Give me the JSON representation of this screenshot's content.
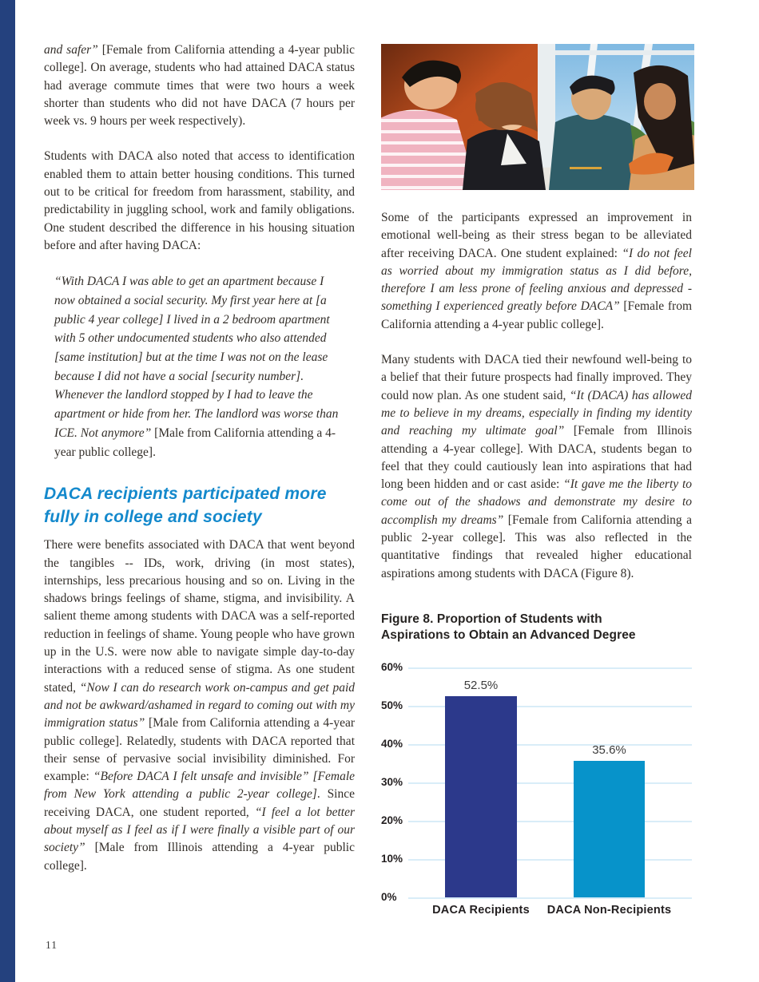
{
  "page": {
    "number": "11",
    "accent_bar_color": "#24417e",
    "heading_color": "#1489cc"
  },
  "left_column": {
    "para1_runs": [
      {
        "t": "and safer”",
        "i": true
      },
      {
        "t": " [Female from California attending a 4-year public college]. On average, students who had attained DACA status had average commute times that were two hours a week shorter than students who did not have DACA (7 hours per week vs. 9 hours per week respectively).",
        "i": false
      }
    ],
    "para2": "Students with DACA also noted that access to identification enabled them to attain better housing conditions. This turned out to be critical for freedom from harassment, stability, and predictability in juggling school, work and family obligations. One student described the difference in his housing situation before and after having DACA:",
    "quote_runs": [
      {
        "t": "“With DACA I was able to get an apartment because I now obtained a social security. My first year here at [a public 4 year college] I lived in a 2 bedroom apartment with 5 other undocumented students who also attended [same institution] but at the time I was not on the lease because I did not have a social [security number]. Whenever the landlord stopped by I had to leave the apartment or hide from her. The landlord was worse than ICE. Not anymore”",
        "i": true
      },
      {
        "t": " [Male from California attending a 4-year public college].",
        "i": false
      }
    ],
    "heading": "DACA recipients participated more fully in college and society",
    "para3_runs": [
      {
        "t": "There were benefits associated with DACA that went beyond the tangibles -- IDs, work, driving (in most states), internships, less precarious housing and so on. Living in the shadows brings feelings of shame, stigma, and invisibility. A salient theme among students with DACA was a self-reported reduction in feelings of shame. Young people who have grown up in the U.S. were now able to navigate simple day-to-day interactions with a reduced sense of stigma. As one student stated, ",
        "i": false
      },
      {
        "t": "“Now I can do research work on-campus and get paid and not be awkward/ashamed in regard to coming out with my immigration status”",
        "i": true
      },
      {
        "t": " [Male from California attending a 4-year public college]. Relatedly, students with DACA reported that their sense of pervasive social invisibility diminished. For example: ",
        "i": false
      },
      {
        "t": "“Before DACA I felt unsafe and invisible” [Female from New York attending a public 2-year college]",
        "i": true
      },
      {
        "t": ". Since receiving DACA, one student reported, ",
        "i": false
      },
      {
        "t": "“I feel a lot better about myself as I feel as if I were finally a visible part of our society”",
        "i": true
      },
      {
        "t": " [Male from Illinois attending a 4-year public college].",
        "i": false
      }
    ]
  },
  "right_column": {
    "paraA_runs": [
      {
        "t": "Some of the participants expressed an improvement in emotional well-being as their stress began to be alleviated after receiving DACA. One student explained: ",
        "i": false
      },
      {
        "t": "“I do not feel as worried about my immigration status as I did before, therefore I am less prone of feeling anxious and depressed - something I experienced greatly before DACA”",
        "i": true
      },
      {
        "t": " [Female from California attending a 4-year public college].",
        "i": false
      }
    ],
    "paraB_runs": [
      {
        "t": "Many students with DACA tied their newfound well-being to a belief that their future prospects had finally improved. They could now plan. As one student said, ",
        "i": false
      },
      {
        "t": "“It (DACA) has allowed me to believe in my dreams, especially in finding my identity and reaching my ultimate goal”",
        "i": true
      },
      {
        "t": " [Female from Illinois attending a 4-year college]. With DACA, students began to feel that they could cautiously lean into aspirations that had long been hidden and or cast aside: ",
        "i": false
      },
      {
        "t": "“It gave me the liberty to come out of the shadows and demonstrate my desire to accomplish my dreams”",
        "i": true
      },
      {
        "t": " [Female from California attending a public 2-year college]. This was also reflected in the quantitative findings that revealed higher educational aspirations among students with DACA (Figure 8).",
        "i": false
      }
    ]
  },
  "figure": {
    "caption": "Figure 8. Proportion of Students with Aspirations to Obtain an Advanced Degree"
  },
  "chart_data": {
    "type": "bar",
    "title": "Figure 8. Proportion of Students with Aspirations to Obtain an Advanced Degree",
    "categories": [
      "DACA Recipients",
      "DACA Non-Recipients"
    ],
    "values": [
      52.5,
      35.6
    ],
    "value_labels": [
      "52.5%",
      "35.6%"
    ],
    "bar_colors": [
      "#2c398b",
      "#0793ca"
    ],
    "xlabel": "",
    "ylabel": "",
    "ylim": [
      0,
      60
    ],
    "ytick_labels": [
      "60%",
      "50%",
      "40%",
      "30%",
      "20%",
      "10%",
      "0%"
    ],
    "grid": true,
    "gridline_color": "#d9edf8",
    "legend": "none"
  }
}
